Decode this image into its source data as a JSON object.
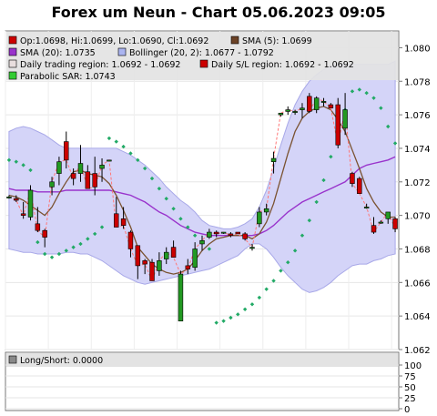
{
  "title": "Forex um Neun - Chart 05.06.2023 09:05",
  "chart_data": [
    {
      "type": "candlestick",
      "ylim": [
        1.062,
        1.081
      ],
      "yticks": [
        "1.062",
        "1.064",
        "1.066",
        "1.068",
        "1.070",
        "1.072",
        "1.074",
        "1.076",
        "1.078",
        "1.080"
      ],
      "grid": true,
      "legend_position": "top",
      "legend": [
        {
          "label": "Op:1.0698, Hi:1.0699, Lo:1.0690, Cl:1.0692",
          "color": "#cc0000"
        },
        {
          "label": "SMA (5): 1.0699",
          "color": "#6b4226"
        },
        {
          "label": "SMA (20): 1.0735",
          "color": "#9933cc"
        },
        {
          "label": "Bollinger (20, 2): 1.0677 - 1.0792",
          "color": "#aab4f0"
        },
        {
          "label": "Daily trading region: 1.0692 - 1.0692",
          "color": "#e8dede"
        },
        {
          "label": "Daily S/L region: 1.0692 - 1.0692",
          "color": "#cc0000"
        },
        {
          "label": "Parabolic SAR: 1.0743",
          "color": "#33cc33"
        }
      ],
      "colors": {
        "bull": "#229922",
        "bear": "#cc0000",
        "sma5": "#7a5230",
        "sma20": "#9933cc",
        "band_fill": "#d4d4f8",
        "band_edge": "#a8a8e8",
        "psar": "#22aa66",
        "connector": "#ff7777"
      },
      "candles": [
        {
          "o": 1.0711,
          "h": 1.0712,
          "l": 1.071,
          "c": 1.0711
        },
        {
          "o": 1.071,
          "h": 1.0712,
          "l": 1.0708,
          "c": 1.0709
        },
        {
          "o": 1.0701,
          "h": 1.0708,
          "l": 1.0698,
          "c": 1.07
        },
        {
          "o": 1.0699,
          "h": 1.0718,
          "l": 1.0697,
          "c": 1.0715
        },
        {
          "o": 1.0695,
          "h": 1.0705,
          "l": 1.069,
          "c": 1.0691
        },
        {
          "o": 1.0691,
          "h": 1.0692,
          "l": 1.0681,
          "c": 1.0687
        },
        {
          "o": 1.0717,
          "h": 1.0723,
          "l": 1.0712,
          "c": 1.072
        },
        {
          "o": 1.0725,
          "h": 1.0735,
          "l": 1.0718,
          "c": 1.0732
        },
        {
          "o": 1.0744,
          "h": 1.075,
          "l": 1.0728,
          "c": 1.0733
        },
        {
          "o": 1.0725,
          "h": 1.0728,
          "l": 1.0718,
          "c": 1.0722
        },
        {
          "o": 1.0725,
          "h": 1.0742,
          "l": 1.072,
          "c": 1.0731
        },
        {
          "o": 1.0726,
          "h": 1.073,
          "l": 1.0716,
          "c": 1.0716
        },
        {
          "o": 1.0725,
          "h": 1.0735,
          "l": 1.0712,
          "c": 1.0717
        },
        {
          "o": 1.0728,
          "h": 1.0734,
          "l": 1.072,
          "c": 1.073
        },
        {
          "o": 1.0733,
          "h": 1.0733,
          "l": 1.0733,
          "c": 1.0733
        },
        {
          "o": 1.0701,
          "h": 1.0711,
          "l": 1.0693,
          "c": 1.0693
        },
        {
          "o": 1.0698,
          "h": 1.0705,
          "l": 1.0692,
          "c": 1.0694
        },
        {
          "o": 1.069,
          "h": 1.0691,
          "l": 1.0675,
          "c": 1.068
        },
        {
          "o": 1.0682,
          "h": 1.0682,
          "l": 1.0662,
          "c": 1.067
        },
        {
          "o": 1.0673,
          "h": 1.0674,
          "l": 1.0665,
          "c": 1.0671
        },
        {
          "o": 1.0672,
          "h": 1.0674,
          "l": 1.0661,
          "c": 1.0661
        },
        {
          "o": 1.0667,
          "h": 1.0678,
          "l": 1.0664,
          "c": 1.0673
        },
        {
          "o": 1.0674,
          "h": 1.0681,
          "l": 1.0671,
          "c": 1.0678
        },
        {
          "o": 1.0681,
          "h": 1.0685,
          "l": 1.0675,
          "c": 1.0675
        },
        {
          "o": 1.0637,
          "h": 1.0667,
          "l": 1.0637,
          "c": 1.0665
        },
        {
          "o": 1.067,
          "h": 1.0674,
          "l": 1.0665,
          "c": 1.0668
        },
        {
          "o": 1.0669,
          "h": 1.0684,
          "l": 1.0667,
          "c": 1.068
        },
        {
          "o": 1.0683,
          "h": 1.0688,
          "l": 1.0679,
          "c": 1.0685
        },
        {
          "o": 1.0687,
          "h": 1.0692,
          "l": 1.0686,
          "c": 1.069
        },
        {
          "o": 1.069,
          "h": 1.0691,
          "l": 1.0687,
          "c": 1.0689
        },
        {
          "o": 1.069,
          "h": 1.069,
          "l": 1.0689,
          "c": 1.069
        },
        {
          "o": 1.0689,
          "h": 1.069,
          "l": 1.0687,
          "c": 1.0688
        },
        {
          "o": 1.069,
          "h": 1.069,
          "l": 1.0689,
          "c": 1.0689
        },
        {
          "o": 1.0689,
          "h": 1.069,
          "l": 1.0685,
          "c": 1.0686
        },
        {
          "o": 1.0681,
          "h": 1.0683,
          "l": 1.0679,
          "c": 1.0681
        },
        {
          "o": 1.0695,
          "h": 1.0705,
          "l": 1.0693,
          "c": 1.0702
        },
        {
          "o": 1.0702,
          "h": 1.0707,
          "l": 1.07,
          "c": 1.0704
        },
        {
          "o": 1.0732,
          "h": 1.0738,
          "l": 1.0725,
          "c": 1.0734
        },
        {
          "o": 1.076,
          "h": 1.0761,
          "l": 1.0759,
          "c": 1.0761
        },
        {
          "o": 1.0762,
          "h": 1.0765,
          "l": 1.076,
          "c": 1.0763
        },
        {
          "o": 1.0762,
          "h": 1.0763,
          "l": 1.076,
          "c": 1.0762
        },
        {
          "o": 1.0763,
          "h": 1.0767,
          "l": 1.0758,
          "c": 1.0764
        },
        {
          "o": 1.0771,
          "h": 1.0773,
          "l": 1.0761,
          "c": 1.0762
        },
        {
          "o": 1.0763,
          "h": 1.0771,
          "l": 1.0761,
          "c": 1.077
        },
        {
          "o": 1.0768,
          "h": 1.077,
          "l": 1.0765,
          "c": 1.0768
        },
        {
          "o": 1.0766,
          "h": 1.0767,
          "l": 1.0764,
          "c": 1.0764
        },
        {
          "o": 1.0766,
          "h": 1.077,
          "l": 1.074,
          "c": 1.0742
        },
        {
          "o": 1.0752,
          "h": 1.0773,
          "l": 1.0748,
          "c": 1.0763
        },
        {
          "o": 1.0725,
          "h": 1.0726,
          "l": 1.0717,
          "c": 1.0719
        },
        {
          "o": 1.0722,
          "h": 1.0723,
          "l": 1.0713,
          "c": 1.0713
        },
        {
          "o": 1.0705,
          "h": 1.0707,
          "l": 1.0704,
          "c": 1.0705
        },
        {
          "o": 1.0694,
          "h": 1.0699,
          "l": 1.0689,
          "c": 1.069
        },
        {
          "o": 1.0696,
          "h": 1.0697,
          "l": 1.0695,
          "c": 1.0696
        },
        {
          "o": 1.0698,
          "h": 1.0702,
          "l": 1.0695,
          "c": 1.0702
        },
        {
          "o": 1.0698,
          "h": 1.0699,
          "l": 1.069,
          "c": 1.0692
        }
      ],
      "sma5": [
        1.0712,
        1.0711,
        1.0709,
        1.0706,
        1.0703,
        1.07,
        1.0705,
        1.0713,
        1.072,
        1.0726,
        1.0727,
        1.0725,
        1.0724,
        1.0723,
        1.0719,
        1.0712,
        1.0703,
        1.0693,
        1.0681,
        1.0676,
        1.0671,
        1.0668,
        1.0666,
        1.0665,
        1.0666,
        1.0668,
        1.0673,
        1.0679,
        1.0683,
        1.0686,
        1.0687,
        1.0688,
        1.0688,
        1.0688,
        1.0686,
        1.0689,
        1.0696,
        1.0707,
        1.0722,
        1.0737,
        1.075,
        1.0758,
        1.0762,
        1.0764,
        1.0765,
        1.0763,
        1.0757,
        1.075,
        1.0739,
        1.0728,
        1.0716,
        1.0708,
        1.0702,
        1.0699,
        1.0699
      ],
      "sma20": [
        1.0716,
        1.0715,
        1.0715,
        1.0715,
        1.0714,
        1.0714,
        1.0714,
        1.0714,
        1.0715,
        1.0715,
        1.0715,
        1.0715,
        1.0715,
        1.0715,
        1.0715,
        1.0714,
        1.0713,
        1.0712,
        1.071,
        1.0708,
        1.0705,
        1.0702,
        1.07,
        1.0697,
        1.0694,
        1.0692,
        1.069,
        1.0689,
        1.0688,
        1.0688,
        1.0688,
        1.0688,
        1.0688,
        1.0688,
        1.0688,
        1.0689,
        1.0691,
        1.0694,
        1.0698,
        1.0702,
        1.0705,
        1.0708,
        1.071,
        1.0712,
        1.0714,
        1.0716,
        1.0718,
        1.072,
        1.0724,
        1.0728,
        1.073,
        1.0731,
        1.0732,
        1.0733,
        1.0735
      ],
      "bollinger_upper": [
        1.075,
        1.0752,
        1.0753,
        1.0752,
        1.075,
        1.0748,
        1.0745,
        1.0742,
        1.074,
        1.074,
        1.074,
        1.074,
        1.074,
        1.074,
        1.074,
        1.074,
        1.0738,
        1.0736,
        1.0733,
        1.073,
        1.0726,
        1.0722,
        1.0717,
        1.0713,
        1.0709,
        1.0706,
        1.0702,
        1.0697,
        1.0694,
        1.0693,
        1.0692,
        1.0692,
        1.0693,
        1.0695,
        1.0698,
        1.0705,
        1.0715,
        1.0728,
        1.0742,
        1.0755,
        1.0766,
        1.0774,
        1.078,
        1.0784,
        1.0787,
        1.0789,
        1.079,
        1.079,
        1.079,
        1.079,
        1.079,
        1.079,
        1.079,
        1.079,
        1.0792
      ],
      "bollinger_lower": [
        1.068,
        1.0679,
        1.0678,
        1.0678,
        1.0677,
        1.0677,
        1.0677,
        1.0677,
        1.0678,
        1.0678,
        1.0677,
        1.0677,
        1.0675,
        1.0673,
        1.067,
        1.0667,
        1.0664,
        1.0662,
        1.066,
        1.0659,
        1.066,
        1.0661,
        1.0662,
        1.0663,
        1.0664,
        1.0665,
        1.0666,
        1.0667,
        1.0668,
        1.067,
        1.0672,
        1.0674,
        1.0676,
        1.068,
        1.0683,
        1.0683,
        1.068,
        1.0675,
        1.0669,
        1.0664,
        1.066,
        1.0656,
        1.0654,
        1.0655,
        1.0657,
        1.066,
        1.0664,
        1.0667,
        1.067,
        1.0671,
        1.0671,
        1.0673,
        1.0674,
        1.0676,
        1.0677
      ],
      "psar": [
        1.0733,
        1.0732,
        1.073,
        1.0727,
        1.0684,
        1.0677,
        1.0675,
        1.0677,
        1.0679,
        1.0681,
        1.0683,
        1.0686,
        1.0689,
        1.0693,
        1.0746,
        1.0744,
        1.0741,
        1.0737,
        1.0733,
        1.0728,
        1.0722,
        1.0716,
        1.071,
        1.0704,
        1.0698,
        1.0693,
        1.0688,
        1.0684,
        1.068,
        1.0636,
        1.0637,
        1.0639,
        1.0641,
        1.0644,
        1.0647,
        1.0651,
        1.0656,
        1.0661,
        1.0667,
        1.0672,
        1.0679,
        1.0688,
        1.0697,
        1.0708,
        1.0721,
        1.0735,
        1.0751,
        1.0763,
        1.0774,
        1.0775,
        1.0773,
        1.077,
        1.0764,
        1.0753,
        1.0743
      ]
    },
    {
      "type": "indicator",
      "title": "Long/Short: 0.0000",
      "ylim": [
        0,
        100
      ],
      "yticks": [
        "0",
        "25",
        "50",
        "75",
        "100"
      ],
      "values": []
    }
  ]
}
